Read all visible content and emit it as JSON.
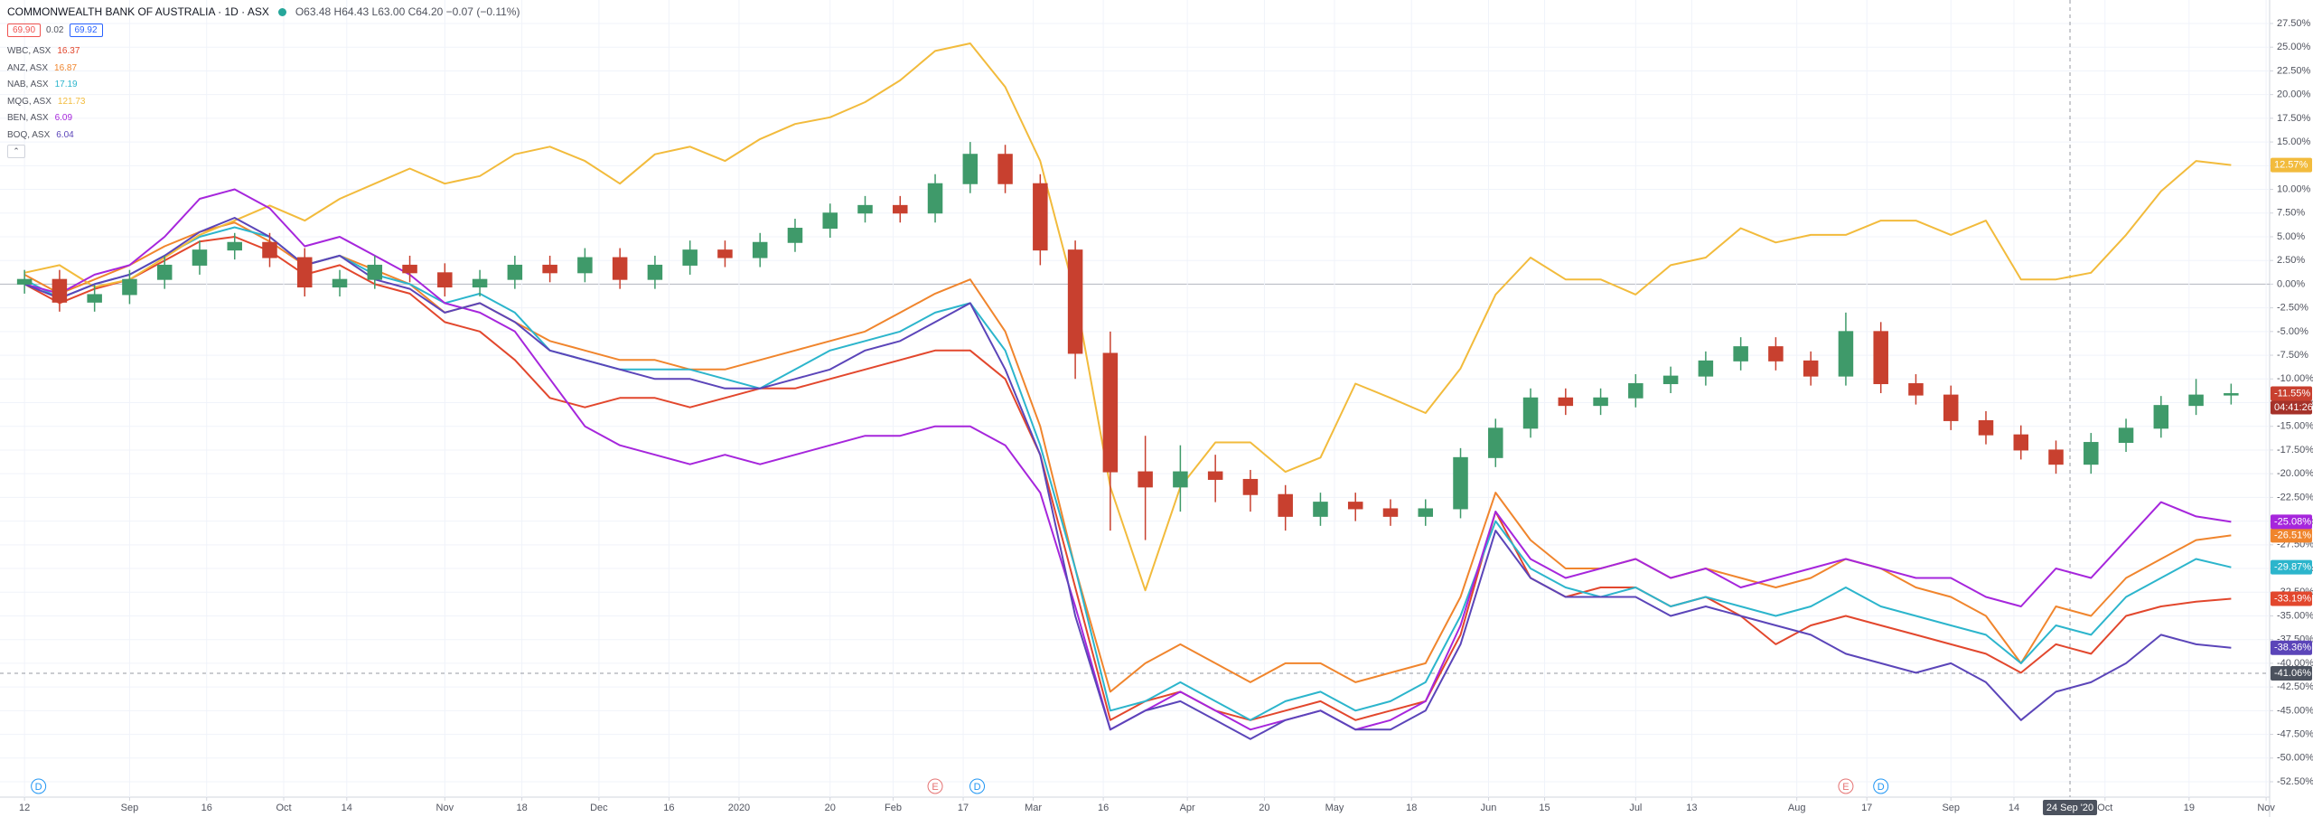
{
  "chart_data": {
    "type": "candlestick",
    "title": "COMMONWEALTH BANK OF AUSTRALIA · 1D · ASX",
    "quote": "O63.48 H64.43 L63.00 C64.20 −0.07 (−0.11%)",
    "trade": {
      "sell": "69.90",
      "spread": "0.02",
      "buy": "69.92"
    },
    "up_color": "#3f9a6a",
    "down_color": "#c8402f",
    "grid": true,
    "x": [
      0,
      5,
      10,
      15,
      20,
      25,
      30,
      35,
      40,
      45,
      50,
      55,
      60,
      65,
      70,
      75,
      80,
      85,
      90,
      95,
      100,
      105,
      110,
      115,
      120,
      125,
      130,
      135,
      140,
      145,
      150,
      155,
      160,
      165,
      170,
      175,
      180,
      185,
      190,
      195,
      200,
      205,
      210,
      215,
      220,
      225,
      230,
      235,
      240,
      245,
      250,
      255,
      260,
      265,
      270,
      275,
      280,
      285,
      290,
      295,
      300,
      305,
      310,
      315
    ],
    "open": [
      0,
      0.5,
      -1.9,
      -1.1,
      0.5,
      2,
      3.6,
      4.4,
      2.8,
      -0.3,
      0.5,
      2,
      1.2,
      -0.3,
      0.5,
      2,
      1.2,
      2.8,
      0.5,
      2,
      3.6,
      2.8,
      4.4,
      5.9,
      7.5,
      8.3,
      7.5,
      10.6,
      13.7,
      10.6,
      3.6,
      -7.3,
      -19.8,
      -21.4,
      -19.8,
      -20.6,
      -22.2,
      -24.5,
      -23,
      -23.7,
      -24.5,
      -23.7,
      -18.3,
      -15.2,
      -12,
      -12.8,
      -12,
      -10.5,
      -9.7,
      -8.1,
      -6.6,
      -8.1,
      -9.7,
      -5,
      -10.5,
      -11.7,
      -14.4,
      -15.9,
      -17.5,
      -19,
      -16.7,
      -15.2,
      -12.8,
      -11.7
    ],
    "high": [
      1.5,
      1.5,
      -0.1,
      1.5,
      3,
      4.6,
      5.4,
      5.4,
      3.8,
      1.5,
      3,
      3,
      2.2,
      1.5,
      3,
      3,
      3.8,
      3.8,
      3,
      4.6,
      4.6,
      5.4,
      6.9,
      8.5,
      9.3,
      9.3,
      11.6,
      15,
      14.7,
      11.6,
      4.6,
      -5,
      -16,
      -17,
      -18,
      -19.6,
      -21.2,
      -22,
      -22,
      -22.7,
      -22.7,
      -17.3,
      -14.2,
      -11,
      -11,
      -11,
      -9.5,
      -8.7,
      -7.1,
      -5.6,
      -5.6,
      -7.1,
      -3,
      -4,
      -9.5,
      -10.7,
      -13.4,
      -14.9,
      -16.5,
      -15.7,
      -14.2,
      -11.8,
      -10,
      -10.5
    ],
    "low": [
      -1,
      -2.9,
      -2.9,
      -2.1,
      -0.5,
      1,
      2.6,
      1.8,
      -1.3,
      -1.3,
      -0.5,
      0.2,
      -1.3,
      -1.3,
      -0.5,
      0.2,
      0.2,
      -0.5,
      -0.5,
      1,
      1.8,
      1.8,
      3.4,
      4.9,
      6.5,
      6.5,
      6.5,
      9.6,
      9.6,
      2,
      -10,
      -26,
      -27,
      -24,
      -23,
      -24,
      -26,
      -25.5,
      -25,
      -25.5,
      -25.5,
      -24.7,
      -19.3,
      -16.2,
      -13.8,
      -13.8,
      -13,
      -11.5,
      -10.7,
      -9.1,
      -9.1,
      -10.7,
      -10.7,
      -11.5,
      -12.7,
      -15.4,
      -16.9,
      -18.5,
      -20,
      -20,
      -17.7,
      -16.2,
      -13.8,
      -12.7
    ],
    "close": [
      0.5,
      -1.9,
      -1.1,
      0.5,
      2,
      3.6,
      4.4,
      2.8,
      -0.3,
      0.5,
      2,
      1.2,
      -0.3,
      0.5,
      2,
      1.2,
      2.8,
      0.5,
      2,
      3.6,
      2.8,
      4.4,
      5.9,
      7.5,
      8.3,
      7.5,
      10.6,
      13.7,
      10.6,
      3.6,
      -7.3,
      -19.8,
      -21.4,
      -19.8,
      -20.6,
      -22.2,
      -24.5,
      -23,
      -23.7,
      -24.5,
      -23.7,
      -18.3,
      -15.2,
      -12,
      -12.8,
      -12,
      -10.5,
      -9.7,
      -8.1,
      -6.6,
      -8.1,
      -9.7,
      -5,
      -10.5,
      -11.7,
      -14.4,
      -15.9,
      -17.5,
      -19,
      -16.7,
      -15.2,
      -12.8,
      -11.7,
      -11.55
    ],
    "last_label": "-11.55%",
    "countdown": "04:41:26",
    "series": [
      {
        "name": "WBC, ASX",
        "last_price": "16.37",
        "color": "#e2472d",
        "last_label": "-33.19%",
        "values": [
          0,
          -2,
          -0.5,
          0.5,
          2.5,
          4.5,
          5,
          3.5,
          1,
          2,
          0,
          -1,
          -4,
          -5,
          -8,
          -12,
          -13,
          -12,
          -12,
          -13,
          -12,
          -11,
          -11,
          -10,
          -9,
          -8,
          -7,
          -7,
          -10,
          -18,
          -32,
          -46,
          -44,
          -43,
          -45,
          -46,
          -45,
          -44,
          -46,
          -45,
          -44,
          -37,
          -24,
          -31,
          -33,
          -32,
          -32,
          -34,
          -33,
          -35,
          -38,
          -36,
          -35,
          -36,
          -37,
          -38,
          -39,
          -41,
          -38,
          -39,
          -35,
          -34,
          -33.5,
          -33.19
        ]
      },
      {
        "name": "ANZ, ASX",
        "last_price": "16.87",
        "color": "#f0852d",
        "last_label": "-26.51%",
        "values": [
          1,
          -1,
          0.5,
          2,
          4,
          5.5,
          6.5,
          4.5,
          2,
          3,
          1.5,
          0,
          -3,
          -2,
          -4,
          -6,
          -7,
          -8,
          -8,
          -9,
          -9,
          -8,
          -7,
          -6,
          -5,
          -3,
          -1,
          0.5,
          -5,
          -15,
          -30,
          -43,
          -40,
          -38,
          -40,
          -42,
          -40,
          -40,
          -42,
          -41,
          -40,
          -33,
          -22,
          -27,
          -30,
          -30,
          -29,
          -31,
          -30,
          -31,
          -32,
          -31,
          -29,
          -30,
          -32,
          -33,
          -35,
          -40,
          -34,
          -35,
          -31,
          -29,
          -27,
          -26.51
        ]
      },
      {
        "name": "NAB, ASX",
        "last_price": "17.19",
        "color": "#2cb5cc",
        "last_label": "-29.87%",
        "values": [
          0.5,
          -1.5,
          0,
          1,
          3,
          5,
          6,
          5,
          2,
          3,
          1,
          0,
          -2,
          -1,
          -3,
          -7,
          -8,
          -9,
          -9,
          -9,
          -10,
          -11,
          -9,
          -7,
          -6,
          -5,
          -3,
          -2,
          -7,
          -17,
          -30,
          -45,
          -44,
          -42,
          -44,
          -46,
          -44,
          -43,
          -45,
          -44,
          -42,
          -35,
          -25,
          -30,
          -32,
          -33,
          -32,
          -34,
          -33,
          -34,
          -35,
          -34,
          -32,
          -34,
          -35,
          -36,
          -37,
          -40,
          -36,
          -37,
          -33,
          -31,
          -29,
          -29.87
        ]
      },
      {
        "name": "MQG, ASX",
        "last_price": "121.73",
        "color": "#f2bb3c",
        "last_label": "12.57%",
        "values": [
          1.2,
          2,
          -0.3,
          0.5,
          2.8,
          5.2,
          6.7,
          8.3,
          6.7,
          9,
          10.6,
          12.2,
          10.6,
          11.4,
          13.7,
          14.5,
          13,
          10.6,
          13.7,
          14.5,
          13,
          15.3,
          16.9,
          17.6,
          19.2,
          21.5,
          24.6,
          25.4,
          20.8,
          13,
          -1.1,
          -21.4,
          -32.3,
          -21.4,
          -16.7,
          -16.7,
          -19.8,
          -18.3,
          -10.5,
          -12,
          -13.6,
          -8.9,
          -1.1,
          2.8,
          0.5,
          0.5,
          -1.1,
          2,
          2.8,
          5.9,
          4.4,
          5.2,
          5.2,
          6.7,
          6.7,
          5.2,
          6.7,
          0.5,
          0.5,
          1.2,
          5.2,
          9.8,
          13,
          12.57
        ]
      },
      {
        "name": "BEN, ASX",
        "last_price": "6.09",
        "color": "#a626dc",
        "last_label": "-25.08%",
        "values": [
          0,
          -1,
          1,
          2,
          5,
          9,
          10,
          8,
          4,
          5,
          3,
          1,
          -2,
          -3,
          -5,
          -10,
          -15,
          -17,
          -18,
          -19,
          -18,
          -19,
          -18,
          -17,
          -16,
          -16,
          -15,
          -15,
          -17,
          -22,
          -34,
          -47,
          -45,
          -43,
          -45,
          -47,
          -46,
          -45,
          -47,
          -46,
          -44,
          -36,
          -24,
          -29,
          -31,
          -30,
          -29,
          -31,
          -30,
          -32,
          -31,
          -30,
          -29,
          -30,
          -31,
          -31,
          -33,
          -34,
          -30,
          -31,
          -27,
          -23,
          -24.5,
          -25.08
        ]
      },
      {
        "name": "BOQ, ASX",
        "last_price": "6.04",
        "color": "#5b45b9",
        "last_label": "-38.36%",
        "values": [
          0,
          -1.5,
          0,
          1,
          3,
          5.5,
          7,
          5,
          2,
          3,
          0.5,
          -0.5,
          -3,
          -2,
          -4,
          -7,
          -8,
          -9,
          -10,
          -10,
          -11,
          -11,
          -10,
          -9,
          -7,
          -6,
          -4,
          -2,
          -9,
          -18,
          -35,
          -47,
          -45,
          -44,
          -46,
          -48,
          -46,
          -45,
          -47,
          -47,
          -45,
          -38,
          -26,
          -31,
          -33,
          -33,
          -33,
          -35,
          -34,
          -35,
          -36,
          -37,
          -39,
          -40,
          -41,
          -40,
          -42,
          -46,
          -43,
          -42,
          -40,
          -37,
          -38,
          -38.36
        ]
      }
    ],
    "xlim": [
      -3.5,
      320.5
    ],
    "xticks": [
      {
        "value": 0,
        "label": "12"
      },
      {
        "value": 15,
        "label": "Sep"
      },
      {
        "value": 26,
        "label": "16"
      },
      {
        "value": 37,
        "label": "Oct"
      },
      {
        "value": 46,
        "label": "14"
      },
      {
        "value": 60,
        "label": "Nov"
      },
      {
        "value": 71,
        "label": "18"
      },
      {
        "value": 82,
        "label": "Dec"
      },
      {
        "value": 92,
        "label": "16"
      },
      {
        "value": 102,
        "label": "2020"
      },
      {
        "value": 115,
        "label": "20"
      },
      {
        "value": 124,
        "label": "Feb"
      },
      {
        "value": 134,
        "label": "17"
      },
      {
        "value": 144,
        "label": "Mar"
      },
      {
        "value": 154,
        "label": "16"
      },
      {
        "value": 166,
        "label": "Apr"
      },
      {
        "value": 177,
        "label": "20"
      },
      {
        "value": 187,
        "label": "May"
      },
      {
        "value": 198,
        "label": "18"
      },
      {
        "value": 209,
        "label": "Jun"
      },
      {
        "value": 217,
        "label": "15"
      },
      {
        "value": 230,
        "label": "Jul"
      },
      {
        "value": 238,
        "label": "13"
      },
      {
        "value": 253,
        "label": "Aug"
      },
      {
        "value": 263,
        "label": "17"
      },
      {
        "value": 275,
        "label": "Sep"
      },
      {
        "value": 284,
        "label": "14"
      },
      {
        "value": 297,
        "label": "Oct"
      },
      {
        "value": 309,
        "label": "19"
      },
      {
        "value": 320,
        "label": "Nov"
      }
    ],
    "ylim": [
      -52.5,
      27.5
    ],
    "yticks": [
      {
        "value": 27.5,
        "label": "27.50%"
      },
      {
        "value": 25,
        "label": "25.00%"
      },
      {
        "value": 22.5,
        "label": "22.50%"
      },
      {
        "value": 20,
        "label": "20.00%"
      },
      {
        "value": 17.5,
        "label": "17.50%"
      },
      {
        "value": 15,
        "label": "15.00%"
      },
      {
        "value": 12.5,
        "label": "12.50%"
      },
      {
        "value": 10,
        "label": "10.00%"
      },
      {
        "value": 7.5,
        "label": "7.50%"
      },
      {
        "value": 5,
        "label": "5.00%"
      },
      {
        "value": 2.5,
        "label": "2.50%"
      },
      {
        "value": 0,
        "label": "0.00%"
      },
      {
        "value": -2.5,
        "label": "-2.50%"
      },
      {
        "value": -5,
        "label": "-5.00%"
      },
      {
        "value": -7.5,
        "label": "-7.50%"
      },
      {
        "value": -10,
        "label": "-10.00%"
      },
      {
        "value": -12.5,
        "label": "-12.50%"
      },
      {
        "value": -15,
        "label": "-15.00%"
      },
      {
        "value": -17.5,
        "label": "-17.50%"
      },
      {
        "value": -20,
        "label": "-20.00%"
      },
      {
        "value": -22.5,
        "label": "-22.50%"
      },
      {
        "value": -25,
        "label": "-25.00%"
      },
      {
        "value": -27.5,
        "label": "-27.50%"
      },
      {
        "value": -30,
        "label": "-30.00%"
      },
      {
        "value": -32.5,
        "label": "-32.50%"
      },
      {
        "value": -35,
        "label": "-35.00%"
      },
      {
        "value": -37.5,
        "label": "-37.50%"
      },
      {
        "value": -40,
        "label": "-40.00%"
      },
      {
        "value": -42.5,
        "label": "-42.50%"
      },
      {
        "value": -45,
        "label": "-45.00%"
      },
      {
        "value": -47.5,
        "label": "-47.50%"
      },
      {
        "value": -50,
        "label": "-50.00%"
      },
      {
        "value": -52.5,
        "label": "-52.50%"
      }
    ],
    "crosshair": {
      "x": 292,
      "y": -41.06,
      "x_label": "24 Sep '20",
      "y_label": "-41.06%"
    },
    "events": [
      {
        "x": 2,
        "label": "D"
      },
      {
        "x": 130,
        "label": "E"
      },
      {
        "x": 136,
        "label": "D"
      },
      {
        "x": 260,
        "label": "E"
      },
      {
        "x": 265,
        "label": "D"
      }
    ]
  }
}
